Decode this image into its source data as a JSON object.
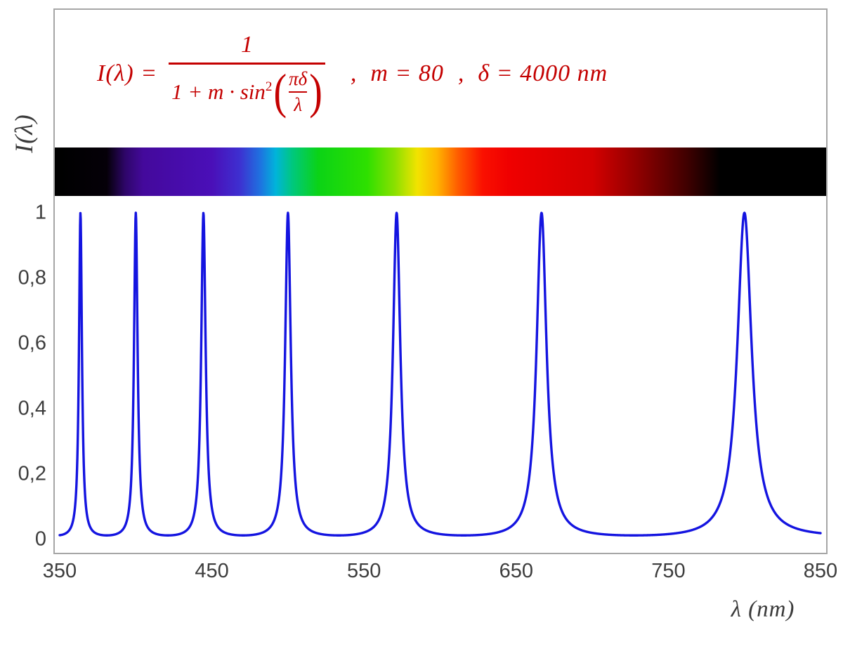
{
  "formula": {
    "color": "#c40000",
    "lhs": "I(λ) =",
    "numerator": "1",
    "den_prefix": "1 + m · sin",
    "den_power": "2",
    "paren_open": "(",
    "paren_close": ")",
    "inner_numerator": "πδ",
    "inner_denominator": "λ",
    "separator1": ",",
    "m_equation": "m = 80",
    "separator2": ",",
    "delta_equation": "δ = 4000 nm"
  },
  "chart_data": {
    "type": "line",
    "formula_text": "I(λ) = 1 / (1 + m·sin²(πδ/λ)),  m = 80,  δ = 4000 nm",
    "params": {
      "m": 80,
      "delta_nm": 4000
    },
    "x": {
      "label": "λ  (nm)",
      "min": 350,
      "max": 850,
      "ticks": [
        "350",
        "450",
        "550",
        "650",
        "750",
        "850"
      ]
    },
    "y": {
      "label": "I(λ)",
      "min": 0,
      "max": 1,
      "ticks": [
        "0",
        "0,2",
        "0,4",
        "0,6",
        "0,8",
        "1"
      ]
    },
    "peaks_nm": [
      363.64,
      400,
      444.44,
      500,
      571.43,
      666.67,
      800
    ],
    "peak_value": 1,
    "baseline_value": 0.0123,
    "line_color": "#1414e0",
    "sample_step_nm": 0.2,
    "grid": false,
    "legend": false
  },
  "spectrum_bar": {
    "stops": [
      {
        "nm": 350,
        "color": "#000000"
      },
      {
        "nm": 381,
        "color": "#050008"
      },
      {
        "nm": 393,
        "color": "#2e0669"
      },
      {
        "nm": 405,
        "color": "#44099c"
      },
      {
        "nm": 450,
        "color": "#4a0fb8"
      },
      {
        "nm": 468,
        "color": "#3e2fd0"
      },
      {
        "nm": 482,
        "color": "#1e73e0"
      },
      {
        "nm": 492,
        "color": "#00b4da"
      },
      {
        "nm": 503,
        "color": "#00c87d"
      },
      {
        "nm": 520,
        "color": "#0bd316"
      },
      {
        "nm": 552,
        "color": "#2ee000"
      },
      {
        "nm": 570,
        "color": "#8ae000"
      },
      {
        "nm": 585,
        "color": "#f2e300"
      },
      {
        "nm": 598,
        "color": "#ffb400"
      },
      {
        "nm": 612,
        "color": "#ff5a00"
      },
      {
        "nm": 628,
        "color": "#fa1000"
      },
      {
        "nm": 645,
        "color": "#f00000"
      },
      {
        "nm": 700,
        "color": "#d40000"
      },
      {
        "nm": 730,
        "color": "#8f0000"
      },
      {
        "nm": 762,
        "color": "#400000"
      },
      {
        "nm": 784,
        "color": "#000000"
      },
      {
        "nm": 850,
        "color": "#000000"
      }
    ]
  }
}
